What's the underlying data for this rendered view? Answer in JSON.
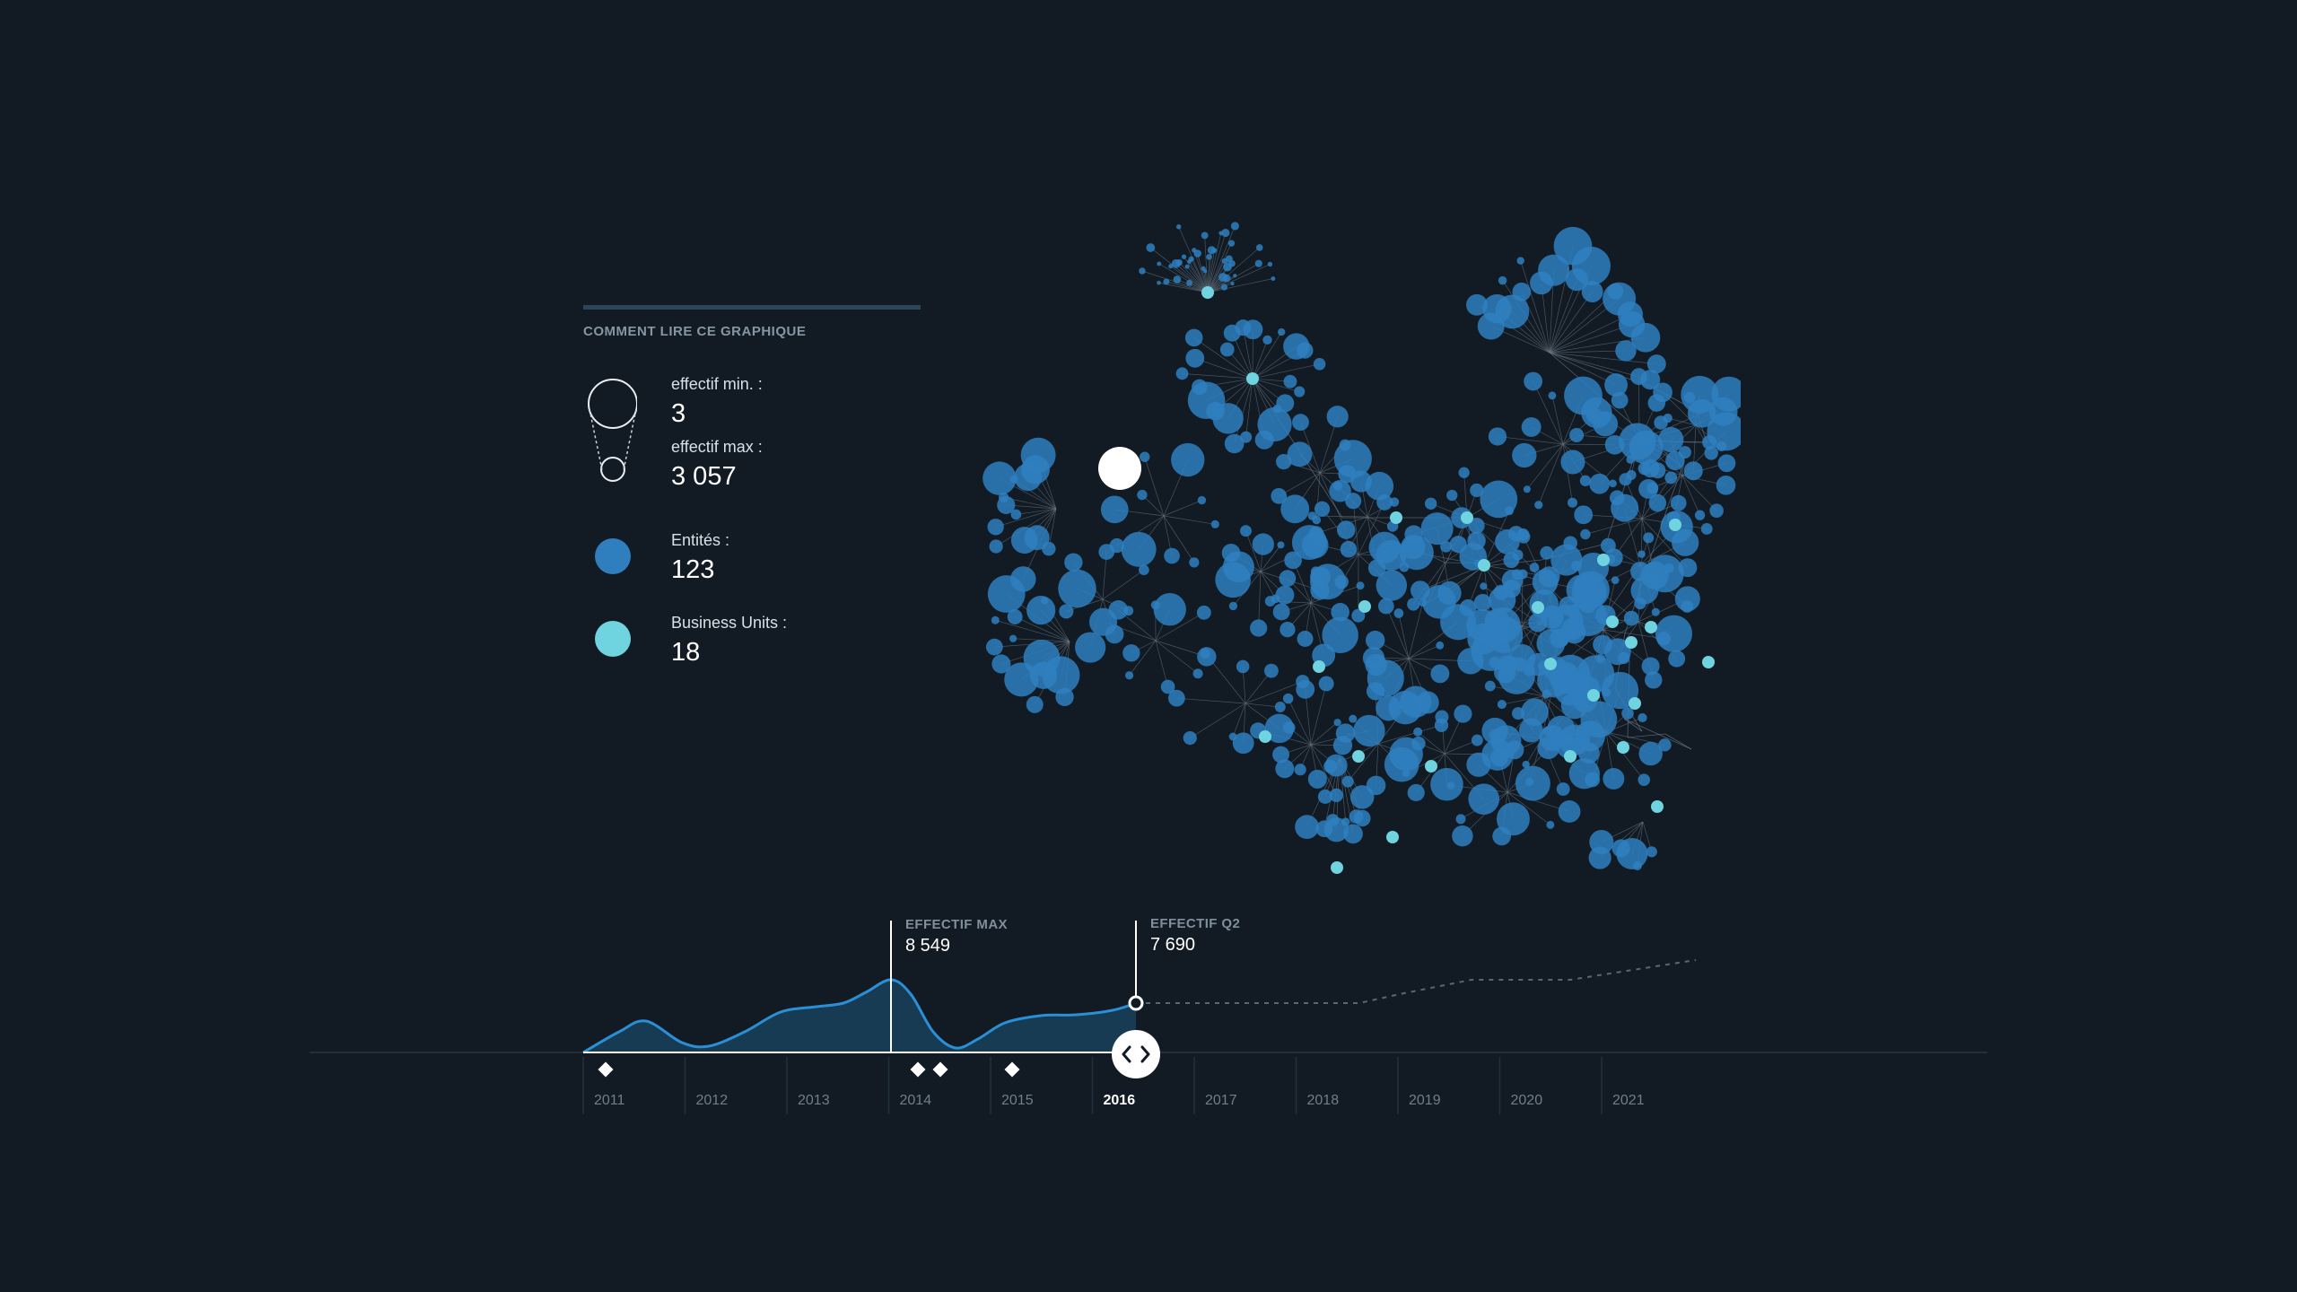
{
  "legend": {
    "title": "COMMENT LIRE CE GRAPHIQUE",
    "effectif_min_label": "effectif min. :",
    "effectif_min_value": "3",
    "effectif_max_label": "effectif max :",
    "effectif_max_value": "3 057",
    "entites_label": "Entités :",
    "entites_value": "123",
    "bu_label": "Business Units :",
    "bu_value": "18"
  },
  "timeline": {
    "years": [
      "2011",
      "2012",
      "2013",
      "2014",
      "2015",
      "2016",
      "2017",
      "2018",
      "2019",
      "2020",
      "2021"
    ],
    "selected_year": "2016",
    "annotations": {
      "max_title": "EFFECTIF MAX",
      "max_value": "8 549",
      "q2_title": "EFFECTIF Q2",
      "q2_value": "7 690"
    },
    "handle_icon": "code-arrows-icon",
    "event_marker_icon": "diamond-icon"
  },
  "colors": {
    "background": "#121b24",
    "entity": "#2f7fbf",
    "business_unit": "#6fd3e0",
    "highlight": "#ffffff",
    "area_fill": "#173b52",
    "area_line": "#2b8fd6"
  }
}
